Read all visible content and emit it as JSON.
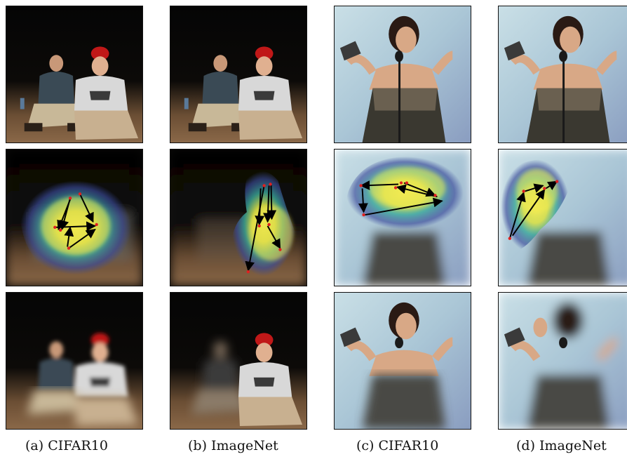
{
  "captions": {
    "a": "(a) CIFAR10",
    "b": "(b) ImageNet",
    "c": "(c) CIFAR10",
    "d": "(d) ImageNet"
  },
  "colors": {
    "heatmap_outer": "#3a4a9a",
    "heatmap_mid": "#3aa89a",
    "heatmap_inner": "#f2e64a",
    "fixation_point": "#e02020",
    "scanpath_arrow": "#000000"
  }
}
